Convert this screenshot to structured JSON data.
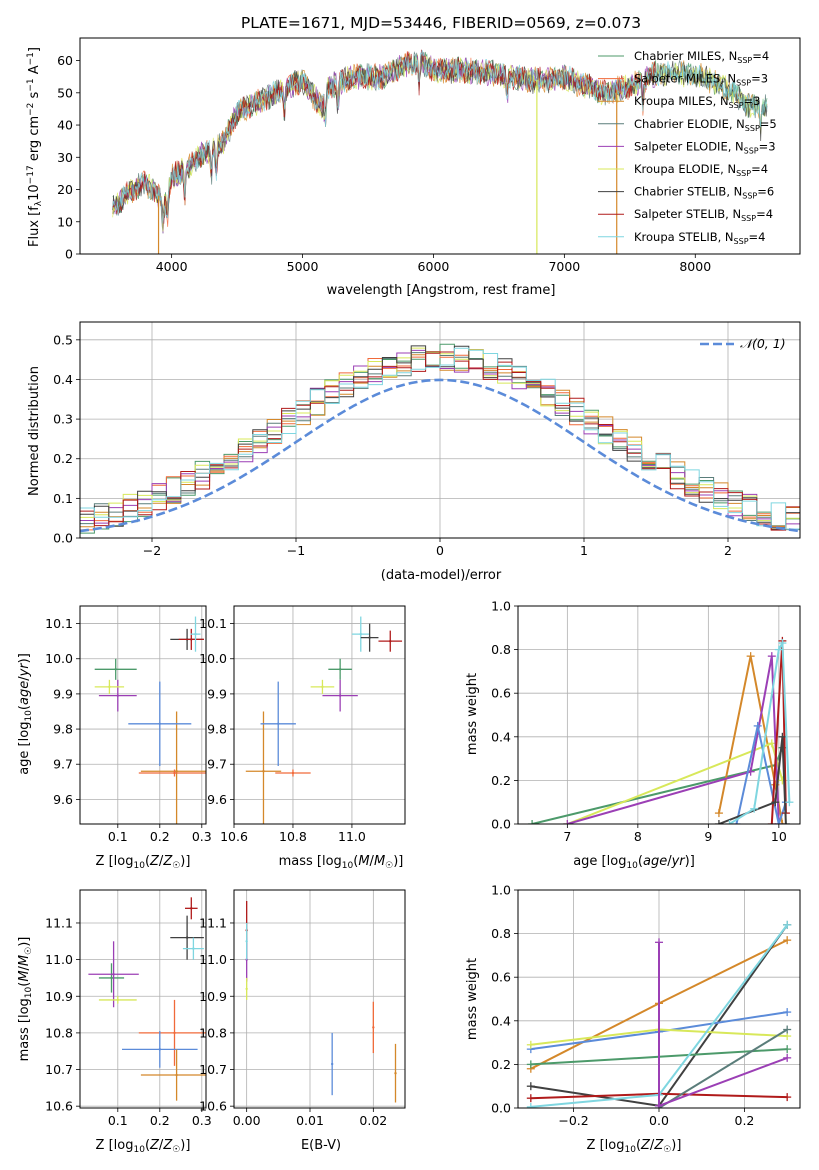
{
  "figure_title": "PLATE=1671, MJD=53446, FIBERID=0569, z=0.073",
  "colors": {
    "Chabrier MILES": "#4c9a6a",
    "Salpeter MILES": "#f06a3a",
    "Kroupa MILES": "#d4882a",
    "Chabrier ELODIE": "#5a7d7a",
    "Salpeter ELODIE": "#9b3fb5",
    "Kroupa ELODIE": "#d8e85a",
    "Chabrier STELIB": "#404040",
    "Salpeter STELIB": "#b01a1a",
    "Kroupa STELIB": "#7fd6e0",
    "gaussian": "#5b8bd9"
  },
  "chart_data": [
    {
      "id": "spectrum",
      "type": "line",
      "xlabel": "wavelength [Angstrom, rest frame]",
      "ylabel_parts": {
        "a": "Flux [f",
        "b": "λ",
        "c": "10",
        "d": "−17",
        "e": " erg cm",
        "f": "−2",
        "g": " s",
        "h": "−1",
        "i": " A",
        "j": "−1",
        "k": "]"
      },
      "xlim": [
        3300,
        8800
      ],
      "ylim": [
        0,
        67
      ],
      "xticks": [
        4000,
        5000,
        6000,
        7000,
        8000
      ],
      "yticks": [
        0,
        10,
        20,
        30,
        40,
        50,
        60
      ],
      "grid": false,
      "legend_position": "top-right",
      "legend": [
        {
          "name": "Chabrier MILES",
          "nssp": "=4"
        },
        {
          "name": "Salpeter MILES",
          "nssp": "=3"
        },
        {
          "name": "Kroupa MILES",
          "nssp": "=3"
        },
        {
          "name": "Chabrier ELODIE",
          "nssp": "=5"
        },
        {
          "name": "Salpeter ELODIE",
          "nssp": "=3"
        },
        {
          "name": "Kroupa ELODIE",
          "nssp": "=4"
        },
        {
          "name": "Chabrier STELIB",
          "nssp": "=6"
        },
        {
          "name": "Salpeter STELIB",
          "nssp": "=4"
        },
        {
          "name": "Kroupa STELIB",
          "nssp": "=4"
        }
      ],
      "nssp_label": {
        "n": "N",
        "sub": "SSP"
      },
      "envelope": {
        "x": [
          3550,
          3600,
          3700,
          3800,
          3900,
          3950,
          4000,
          4100,
          4200,
          4300,
          4400,
          4500,
          4600,
          4800,
          5000,
          5150,
          5200,
          5400,
          5600,
          5800,
          5900,
          6000,
          6200,
          6500,
          6700,
          6900,
          7000,
          7100,
          7200,
          7300,
          7400,
          7500,
          7700,
          8000,
          8200,
          8300,
          8400,
          8550
        ],
        "y": [
          14,
          16,
          20,
          22,
          18,
          16,
          24,
          26,
          30,
          32,
          35,
          44,
          46,
          50,
          54,
          45,
          52,
          55,
          55,
          59,
          60,
          57,
          57,
          56,
          54,
          54,
          55,
          53,
          52,
          50,
          51,
          52,
          56,
          56,
          52,
          50,
          46,
          46
        ]
      },
      "dropouts": [
        {
          "x": 3900,
          "series": "Kroupa MILES"
        },
        {
          "x": 6790,
          "series": "Kroupa ELODIE"
        },
        {
          "x": 7400,
          "series": "Kroupa MILES"
        }
      ]
    },
    {
      "id": "residuals",
      "type": "histogram",
      "xlabel": "(data-model)/error",
      "ylabel": "Normed distribution",
      "xlim": [
        -2.5,
        2.5
      ],
      "ylim": [
        0,
        0.545
      ],
      "xticks": [
        -2,
        -1,
        0,
        1,
        2
      ],
      "yticks": [
        0.0,
        0.1,
        0.2,
        0.3,
        0.4,
        0.5
      ],
      "grid": true,
      "legend_position": "top-right",
      "legend_label": "𝒩(0, 1)",
      "bin_width": 0.1,
      "bin_start": -2.5
    },
    {
      "id": "age_vs_Z",
      "type": "errorbar",
      "xlabel": "Z [log₁₀(Z/Z☉)]",
      "ylabel": "age  [log₁₀(age/yr)]",
      "xlim": [
        0.01,
        0.31
      ],
      "ylim": [
        9.53,
        10.15
      ],
      "xticks": [
        0.1,
        0.2,
        0.3
      ],
      "yticks": [
        9.6,
        9.7,
        9.8,
        9.9,
        10.0,
        10.1
      ],
      "grid": true,
      "points": [
        {
          "series": "Chabrier MILES",
          "x": 0.095,
          "xerr": 0.05,
          "y": 9.97,
          "yerr": 0.03
        },
        {
          "series": "Kroupa MILES",
          "x": 0.24,
          "xerr": 0.085,
          "y": 9.68,
          "yerr": 0.17
        },
        {
          "series": "Salpeter MILES",
          "x": 0.235,
          "xerr": 0.085,
          "y": 9.675,
          "yerr": 0.01
        },
        {
          "series": "gaussian",
          "x": 0.2,
          "xerr": 0.075,
          "y": 9.815,
          "yerr": 0.12
        },
        {
          "series": "Salpeter ELODIE",
          "x": 0.1,
          "xerr": 0.045,
          "y": 9.895,
          "yerr": 0.045
        },
        {
          "series": "Kroupa ELODIE",
          "x": 0.08,
          "xerr": 0.035,
          "y": 9.92,
          "yerr": 0.02
        },
        {
          "series": "Chabrier STELIB",
          "x": 0.265,
          "xerr": 0.04,
          "y": 10.055,
          "yerr": 0.03
        },
        {
          "series": "Salpeter STELIB",
          "x": 0.275,
          "xerr": 0.03,
          "y": 10.055,
          "yerr": 0.03
        },
        {
          "series": "Kroupa STELIB",
          "x": 0.285,
          "xerr": 0.012,
          "y": 10.07,
          "yerr": 0.05
        }
      ]
    },
    {
      "id": "age_vs_mass",
      "type": "errorbar",
      "xlabel": "mass [log₁₀(M/M☉)]",
      "ylabel": "",
      "xlim": [
        10.6,
        11.18
      ],
      "ylim": [
        9.53,
        10.15
      ],
      "xticks": [
        10.6,
        10.8,
        11.0
      ],
      "yticks": [
        9.6,
        9.7,
        9.8,
        9.9,
        10.0,
        10.1
      ],
      "grid": true,
      "points": [
        {
          "series": "Kroupa MILES",
          "x": 10.7,
          "xerr": 0.06,
          "y": 9.68,
          "yerr": 0.17
        },
        {
          "series": "gaussian",
          "x": 10.75,
          "xerr": 0.06,
          "y": 9.815,
          "yerr": 0.12
        },
        {
          "series": "Kroupa ELODIE",
          "x": 10.9,
          "xerr": 0.04,
          "y": 9.92,
          "yerr": 0.02
        },
        {
          "series": "Chabrier MILES",
          "x": 10.96,
          "xerr": 0.04,
          "y": 9.97,
          "yerr": 0.03
        },
        {
          "series": "Salpeter ELODIE",
          "x": 10.96,
          "xerr": 0.06,
          "y": 9.895,
          "yerr": 0.045
        },
        {
          "series": "Salpeter MILES",
          "x": 10.8,
          "xerr": 0.06,
          "y": 9.675,
          "yerr": 0.01
        },
        {
          "series": "Kroupa STELIB",
          "x": 11.03,
          "xerr": 0.03,
          "y": 10.07,
          "yerr": 0.05
        },
        {
          "series": "Chabrier STELIB",
          "x": 11.06,
          "xerr": 0.03,
          "y": 10.06,
          "yerr": 0.04
        },
        {
          "series": "Salpeter STELIB",
          "x": 11.13,
          "xerr": 0.04,
          "y": 10.05,
          "yerr": 0.03
        }
      ]
    },
    {
      "id": "massweight_vs_age",
      "type": "line",
      "xlabel": "age  [log₁₀(age/yr)]",
      "ylabel": "mass weight",
      "xlim": [
        6.3,
        10.3
      ],
      "ylim": [
        0,
        1.0
      ],
      "xticks": [
        7,
        8,
        9,
        10
      ],
      "yticks": [
        0.0,
        0.2,
        0.4,
        0.6,
        0.8,
        1.0
      ],
      "grid": true,
      "series": [
        {
          "name": "Chabrier MILES",
          "x": [
            6.5,
            9.95,
            10.05
          ],
          "y": [
            0.0,
            0.27,
            0.35
          ]
        },
        {
          "name": "Kroupa MILES",
          "x": [
            9.15,
            9.6,
            9.95,
            10.05
          ],
          "y": [
            0.05,
            0.77,
            0.18,
            0.0
          ]
        },
        {
          "name": "Kroupa ELODIE",
          "x": [
            7.0,
            9.9,
            10.05
          ],
          "y": [
            0.0,
            0.37,
            0.2
          ]
        },
        {
          "name": "Salpeter ELODIE",
          "x": [
            7.0,
            9.6,
            9.9,
            10.0
          ],
          "y": [
            0.0,
            0.24,
            0.77,
            0.0
          ]
        },
        {
          "name": "gaussian",
          "x": [
            9.4,
            9.7,
            10.0,
            10.1
          ],
          "y": [
            0.0,
            0.45,
            0.0,
            0.1
          ]
        },
        {
          "name": "Salpeter STELIB",
          "x": [
            9.9,
            10.05,
            10.1
          ],
          "y": [
            0.0,
            0.84,
            0.05
          ]
        },
        {
          "name": "Chabrier STELIB",
          "x": [
            9.15,
            9.95,
            10.05,
            10.1
          ],
          "y": [
            0.0,
            0.1,
            0.4,
            0.0
          ]
        },
        {
          "name": "Kroupa STELIB",
          "x": [
            9.3,
            9.65,
            10.0,
            10.05,
            10.15
          ],
          "y": [
            0.0,
            0.07,
            0.8,
            0.83,
            0.1
          ]
        }
      ]
    },
    {
      "id": "mass_vs_Z",
      "type": "errorbar",
      "xlabel": "Z [log₁₀(Z/Z☉)]",
      "ylabel": "mass [log₁₀(M/M☉)]",
      "xlim": [
        0.01,
        0.31
      ],
      "ylim": [
        10.595,
        11.19
      ],
      "xticks": [
        0.1,
        0.2,
        0.3
      ],
      "yticks": [
        10.6,
        10.7,
        10.8,
        10.9,
        11.0,
        11.1
      ],
      "grid": true,
      "points": [
        {
          "series": "Chabrier MILES",
          "x": 0.085,
          "xerr": 0.03,
          "y": 10.95,
          "yerr": 0.04
        },
        {
          "series": "Salpeter ELODIE",
          "x": 0.09,
          "xerr": 0.06,
          "y": 10.96,
          "yerr": 0.09
        },
        {
          "series": "Kroupa ELODIE",
          "x": 0.1,
          "xerr": 0.045,
          "y": 10.89,
          "yerr": 0.01
        },
        {
          "series": "Salpeter MILES",
          "x": 0.235,
          "xerr": 0.085,
          "y": 10.8,
          "yerr": 0.09
        },
        {
          "series": "gaussian",
          "x": 0.2,
          "xerr": 0.09,
          "y": 10.755,
          "yerr": 0.05
        },
        {
          "series": "Kroupa MILES",
          "x": 0.24,
          "xerr": 0.085,
          "y": 10.685,
          "yerr": 0.07
        },
        {
          "series": "Chabrier STELIB",
          "x": 0.265,
          "xerr": 0.04,
          "y": 11.06,
          "yerr": 0.06
        },
        {
          "series": "Kroupa STELIB",
          "x": 0.28,
          "xerr": 0.025,
          "y": 11.03,
          "yerr": 0.03
        },
        {
          "series": "Salpeter STELIB",
          "x": 0.275,
          "xerr": 0.015,
          "y": 11.14,
          "yerr": 0.03
        }
      ]
    },
    {
      "id": "mass_vs_ebv",
      "type": "errorbar",
      "xlabel": "E(B-V)",
      "ylabel": "",
      "xlim": [
        -0.002,
        0.025
      ],
      "ylim": [
        10.595,
        11.19
      ],
      "xticks": [
        0.0,
        0.01,
        0.02
      ],
      "yticks": [
        10.6,
        10.7,
        10.8,
        10.9,
        11.0,
        11.1
      ],
      "grid": true,
      "points": [
        {
          "series": "Salpeter STELIB",
          "x": 0.0,
          "xerr": 0,
          "y": 11.08,
          "yerr": 0.08
        },
        {
          "series": "Salpeter ELODIE",
          "x": 0.0,
          "xerr": 0,
          "y": 11.0,
          "yerr": 0.06
        },
        {
          "series": "Kroupa STELIB",
          "x": 0.0,
          "xerr": 0,
          "y": 11.05,
          "yerr": 0.05
        },
        {
          "series": "Kroupa ELODIE",
          "x": 0.0,
          "xerr": 0,
          "y": 10.92,
          "yerr": 0.03
        },
        {
          "series": "gaussian",
          "x": 0.0135,
          "xerr": 0,
          "y": 10.715,
          "yerr": 0.085
        },
        {
          "series": "Salpeter MILES",
          "x": 0.02,
          "xerr": 0,
          "y": 10.815,
          "yerr": 0.07
        },
        {
          "series": "Kroupa MILES",
          "x": 0.0235,
          "xerr": 0,
          "y": 10.69,
          "yerr": 0.08
        }
      ]
    },
    {
      "id": "massweight_vs_Z",
      "type": "line",
      "xlabel": "Z [log₁₀(Z/Z☉)]",
      "ylabel": "mass weight",
      "xlim": [
        -0.33,
        0.33
      ],
      "ylim": [
        0,
        1.0
      ],
      "xticks": [
        -0.2,
        0.0,
        0.2
      ],
      "yticks": [
        0.0,
        0.2,
        0.4,
        0.6,
        0.8,
        1.0
      ],
      "grid": true,
      "series": [
        {
          "name": "Kroupa MILES",
          "x": [
            -0.3,
            0.0,
            0.3
          ],
          "y": [
            0.18,
            0.48,
            0.77
          ]
        },
        {
          "name": "Chabrier STELIB",
          "x": [
            -0.3,
            0.0,
            0.3
          ],
          "y": [
            0.1,
            0.01,
            0.84
          ]
        },
        {
          "name": "gaussian",
          "x": [
            -0.3,
            0.0,
            0.3
          ],
          "y": [
            0.27,
            0.35,
            0.44
          ]
        },
        {
          "name": "Kroupa ELODIE",
          "x": [
            -0.3,
            0.0,
            0.3
          ],
          "y": [
            0.29,
            0.36,
            0.33
          ]
        },
        {
          "name": "Chabrier MILES",
          "x": [
            -0.3,
            0.0,
            0.3
          ],
          "y": [
            0.2,
            0.235,
            0.27
          ]
        },
        {
          "name": "Salpeter STELIB",
          "x": [
            -0.3,
            0.0,
            0.3
          ],
          "y": [
            0.045,
            0.065,
            0.05
          ]
        },
        {
          "name": "Kroupa STELIB",
          "x": [
            -0.3,
            0.0,
            0.3
          ],
          "y": [
            0.005,
            0.06,
            0.84
          ]
        },
        {
          "name": "Chabrier ELODIE",
          "x": [
            0.0,
            0.3
          ],
          "y": [
            0.0,
            0.36
          ]
        },
        {
          "name": "Salpeter ELODIE",
          "x": [
            0.0,
            0.0,
            0.3
          ],
          "y": [
            0.76,
            0.01,
            0.23
          ]
        }
      ]
    }
  ]
}
